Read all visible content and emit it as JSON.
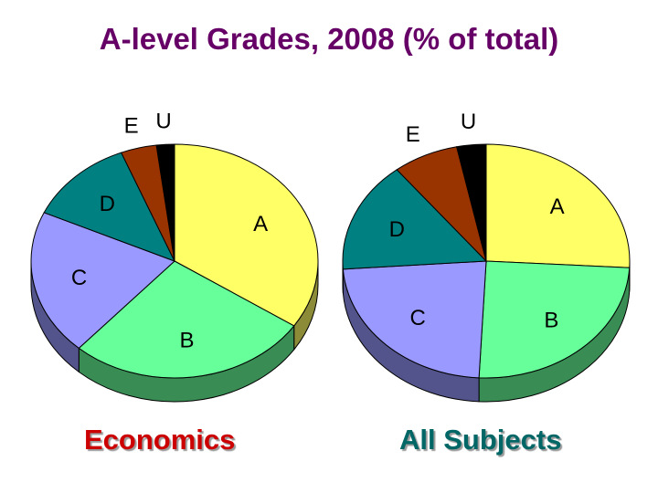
{
  "title": "A-level Grades, 2008 (% of total)",
  "colors": {
    "A": "#ffff66",
    "B": "#66ff99",
    "C": "#9999ff",
    "D": "#008080",
    "E": "#993300",
    "U": "#000000"
  },
  "chart_data": [
    {
      "type": "pie",
      "title": "Economics",
      "categories": [
        "A",
        "B",
        "C",
        "D",
        "E",
        "U"
      ],
      "values": [
        34,
        27,
        20,
        12,
        4,
        2
      ]
    },
    {
      "type": "pie",
      "title": "All Subjects",
      "categories": [
        "A",
        "B",
        "C",
        "D",
        "E",
        "U"
      ],
      "values": [
        25.9,
        24.9,
        23.1,
        15.4,
        7.4,
        3.3
      ]
    }
  ]
}
